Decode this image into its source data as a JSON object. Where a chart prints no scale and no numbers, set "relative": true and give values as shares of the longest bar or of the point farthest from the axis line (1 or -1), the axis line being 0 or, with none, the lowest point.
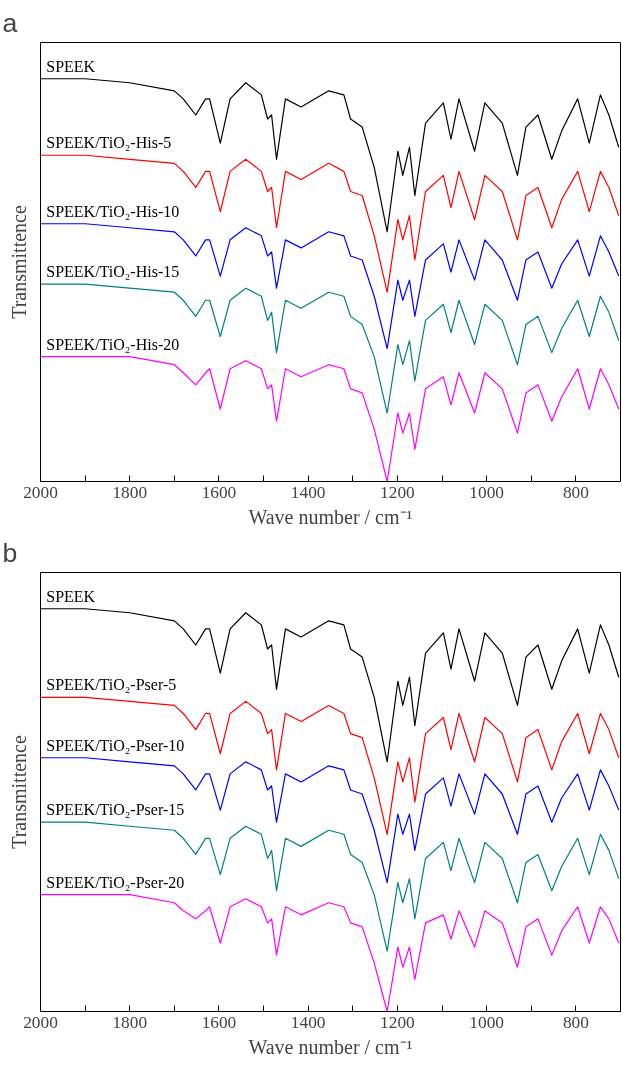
{
  "chart_data": [
    {
      "type": "line",
      "title": "a",
      "xlabel": "Wave number / cm⁻¹",
      "ylabel": "Transmittence",
      "relative": true,
      "grid": false,
      "tick_labels": "x",
      "marker": "none",
      "line_style": "solid",
      "xlim": [
        2000,
        700
      ],
      "xticks": [
        2000,
        {
          "value": 1900,
          "label": null
        },
        1800,
        {
          "value": 1700,
          "label": null
        },
        1600,
        {
          "value": 1500,
          "label": null
        },
        1400,
        {
          "value": 1300,
          "label": null
        },
        1200,
        {
          "value": 1100,
          "label": null
        },
        1000,
        {
          "value": 900,
          "label": null
        },
        800
      ],
      "x": [
        2000,
        1900,
        1800,
        1700,
        1680,
        1652,
        1630,
        1621,
        1597,
        1575,
        1540,
        1505,
        1491,
        1482,
        1471,
        1451,
        1416,
        1354,
        1320,
        1305,
        1279,
        1252,
        1223,
        1199,
        1188,
        1173,
        1161,
        1137,
        1097,
        1080,
        1062,
        1027,
        1004,
        965,
        931,
        912,
        885,
        854,
        832,
        796,
        770,
        745,
        726,
        704
      ],
      "series": [
        {
          "name": "SPEEK",
          "color": "#000000",
          "values": [
            1.0,
            1.0,
            0.99,
            0.97,
            0.95,
            0.91,
            0.95,
            0.95,
            0.84,
            0.95,
            0.99,
            0.96,
            0.9,
            0.91,
            0.8,
            0.95,
            0.93,
            0.97,
            0.96,
            0.9,
            0.88,
            0.78,
            0.62,
            0.82,
            0.76,
            0.83,
            0.71,
            0.89,
            0.94,
            0.85,
            0.95,
            0.82,
            0.94,
            0.89,
            0.76,
            0.88,
            0.91,
            0.8,
            0.87,
            0.95,
            0.84,
            0.96,
            0.91,
            0.83
          ]
        },
        {
          "name": "SPEEK/TiO₂-His-5",
          "color": "#ff0000",
          "values": [
            0.81,
            0.81,
            0.8,
            0.79,
            0.77,
            0.73,
            0.77,
            0.77,
            0.67,
            0.77,
            0.8,
            0.77,
            0.72,
            0.73,
            0.63,
            0.77,
            0.75,
            0.79,
            0.77,
            0.72,
            0.71,
            0.61,
            0.47,
            0.65,
            0.6,
            0.66,
            0.55,
            0.72,
            0.76,
            0.68,
            0.77,
            0.65,
            0.76,
            0.72,
            0.6,
            0.71,
            0.73,
            0.63,
            0.7,
            0.77,
            0.67,
            0.77,
            0.73,
            0.66
          ]
        },
        {
          "name": "SPEEK/TiO₂-His-10",
          "color": "#0000ff",
          "values": [
            0.64,
            0.64,
            0.63,
            0.62,
            0.6,
            0.56,
            0.6,
            0.6,
            0.51,
            0.6,
            0.63,
            0.61,
            0.56,
            0.57,
            0.48,
            0.6,
            0.58,
            0.62,
            0.61,
            0.56,
            0.55,
            0.46,
            0.33,
            0.5,
            0.45,
            0.5,
            0.41,
            0.55,
            0.59,
            0.52,
            0.6,
            0.5,
            0.6,
            0.55,
            0.45,
            0.55,
            0.57,
            0.48,
            0.54,
            0.6,
            0.51,
            0.61,
            0.57,
            0.51
          ]
        },
        {
          "name": "SPEEK/TiO₂-His-15",
          "color": "#008080",
          "values": [
            0.49,
            0.49,
            0.48,
            0.47,
            0.45,
            0.41,
            0.45,
            0.45,
            0.36,
            0.45,
            0.48,
            0.46,
            0.4,
            0.42,
            0.32,
            0.45,
            0.43,
            0.47,
            0.46,
            0.41,
            0.39,
            0.31,
            0.17,
            0.34,
            0.29,
            0.35,
            0.25,
            0.4,
            0.44,
            0.37,
            0.45,
            0.34,
            0.44,
            0.4,
            0.29,
            0.39,
            0.41,
            0.32,
            0.38,
            0.45,
            0.36,
            0.46,
            0.42,
            0.35
          ]
        },
        {
          "name": "SPEEK/TiO₂-His-20",
          "color": "#ff00ff",
          "values": [
            0.31,
            0.31,
            0.31,
            0.29,
            0.27,
            0.24,
            0.27,
            0.28,
            0.18,
            0.28,
            0.3,
            0.28,
            0.23,
            0.24,
            0.15,
            0.28,
            0.26,
            0.29,
            0.28,
            0.23,
            0.22,
            0.13,
            0.0,
            0.17,
            0.12,
            0.17,
            0.08,
            0.23,
            0.26,
            0.19,
            0.27,
            0.17,
            0.27,
            0.23,
            0.12,
            0.22,
            0.24,
            0.15,
            0.21,
            0.28,
            0.18,
            0.28,
            0.24,
            0.18
          ]
        }
      ]
    },
    {
      "type": "line",
      "title": "b",
      "xlabel": "Wave number / cm⁻¹",
      "ylabel": "Transmittence",
      "relative": true,
      "grid": false,
      "tick_labels": "x",
      "marker": "none",
      "line_style": "solid",
      "xlim": [
        2000,
        700
      ],
      "xticks": [
        2000,
        {
          "value": 1900,
          "label": null
        },
        1800,
        {
          "value": 1700,
          "label": null
        },
        1600,
        {
          "value": 1500,
          "label": null
        },
        1400,
        {
          "value": 1300,
          "label": null
        },
        1200,
        {
          "value": 1100,
          "label": null
        },
        1000,
        {
          "value": 900,
          "label": null
        },
        800
      ],
      "x": [
        2000,
        1900,
        1800,
        1700,
        1680,
        1652,
        1630,
        1621,
        1597,
        1575,
        1540,
        1505,
        1491,
        1482,
        1471,
        1451,
        1416,
        1354,
        1320,
        1305,
        1279,
        1252,
        1223,
        1199,
        1188,
        1173,
        1161,
        1137,
        1097,
        1080,
        1062,
        1027,
        1004,
        965,
        931,
        912,
        885,
        854,
        832,
        796,
        770,
        745,
        726,
        704
      ],
      "series": [
        {
          "name": "SPEEK",
          "color": "#000000",
          "values": [
            1.0,
            1.0,
            0.99,
            0.97,
            0.95,
            0.91,
            0.95,
            0.95,
            0.84,
            0.95,
            0.99,
            0.96,
            0.9,
            0.91,
            0.8,
            0.95,
            0.93,
            0.97,
            0.96,
            0.9,
            0.88,
            0.78,
            0.62,
            0.82,
            0.76,
            0.83,
            0.71,
            0.89,
            0.94,
            0.85,
            0.95,
            0.82,
            0.94,
            0.89,
            0.76,
            0.88,
            0.91,
            0.8,
            0.87,
            0.95,
            0.84,
            0.96,
            0.91,
            0.83
          ]
        },
        {
          "name": "SPEEK/TiO₂-Pser-5",
          "color": "#ff0000",
          "values": [
            0.78,
            0.78,
            0.77,
            0.76,
            0.74,
            0.7,
            0.74,
            0.74,
            0.64,
            0.74,
            0.77,
            0.74,
            0.69,
            0.7,
            0.6,
            0.74,
            0.72,
            0.76,
            0.74,
            0.69,
            0.68,
            0.58,
            0.44,
            0.62,
            0.57,
            0.63,
            0.52,
            0.69,
            0.73,
            0.65,
            0.74,
            0.62,
            0.73,
            0.69,
            0.57,
            0.68,
            0.7,
            0.6,
            0.67,
            0.74,
            0.64,
            0.74,
            0.7,
            0.63
          ]
        },
        {
          "name": "SPEEK/TiO₂-Pser-10",
          "color": "#0000ff",
          "values": [
            0.63,
            0.63,
            0.62,
            0.61,
            0.59,
            0.55,
            0.59,
            0.59,
            0.5,
            0.59,
            0.62,
            0.6,
            0.55,
            0.56,
            0.47,
            0.59,
            0.57,
            0.61,
            0.6,
            0.55,
            0.54,
            0.45,
            0.32,
            0.49,
            0.44,
            0.49,
            0.4,
            0.54,
            0.58,
            0.51,
            0.59,
            0.49,
            0.59,
            0.54,
            0.44,
            0.54,
            0.56,
            0.47,
            0.53,
            0.59,
            0.5,
            0.6,
            0.56,
            0.5
          ]
        },
        {
          "name": "SPEEK/TiO₂-Pser-15",
          "color": "#008080",
          "values": [
            0.47,
            0.47,
            0.46,
            0.45,
            0.43,
            0.39,
            0.43,
            0.43,
            0.34,
            0.43,
            0.46,
            0.44,
            0.38,
            0.4,
            0.3,
            0.43,
            0.41,
            0.45,
            0.44,
            0.39,
            0.37,
            0.29,
            0.15,
            0.32,
            0.27,
            0.33,
            0.23,
            0.38,
            0.42,
            0.35,
            0.43,
            0.32,
            0.42,
            0.38,
            0.27,
            0.37,
            0.39,
            0.3,
            0.36,
            0.43,
            0.34,
            0.44,
            0.4,
            0.33
          ]
        },
        {
          "name": "SPEEK/TiO₂-Pser-20",
          "color": "#ff00ff",
          "values": [
            0.29,
            0.29,
            0.29,
            0.27,
            0.25,
            0.23,
            0.25,
            0.26,
            0.17,
            0.26,
            0.28,
            0.26,
            0.22,
            0.23,
            0.14,
            0.26,
            0.24,
            0.27,
            0.26,
            0.22,
            0.21,
            0.12,
            0.0,
            0.16,
            0.11,
            0.16,
            0.08,
            0.22,
            0.24,
            0.18,
            0.25,
            0.16,
            0.25,
            0.22,
            0.11,
            0.21,
            0.23,
            0.14,
            0.2,
            0.26,
            0.17,
            0.26,
            0.23,
            0.17
          ]
        }
      ]
    }
  ]
}
